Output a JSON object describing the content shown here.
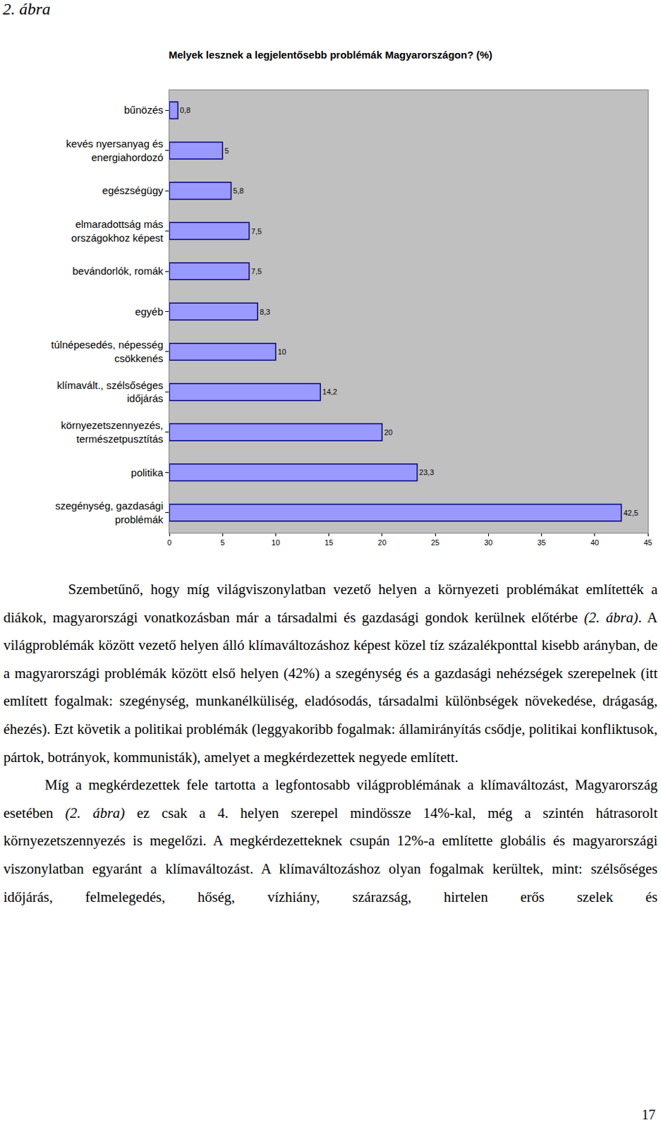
{
  "header": "2. ábra",
  "chart_data": {
    "type": "bar",
    "orientation": "horizontal",
    "title": "Melyek lesznek a legjelentősebb problémák Magyarországon? (%)",
    "categories": [
      "bűnözés",
      "kevés nyersanyag és\nenergiahordozó",
      "egészségügy",
      "elmaradottság más\nországokhoz képest",
      "bevándorlók, romák",
      "egyéb",
      "túlnépesedés, népesség\ncsökkenés",
      "klímavált., szélsőséges\nidőjárás",
      "környezetszennyezés,\ntermészetpusztítás",
      "politika",
      "szegénység, gazdasági\nproblémák"
    ],
    "values": [
      0.8,
      5,
      5.8,
      7.5,
      7.5,
      8.3,
      10,
      14.2,
      20,
      23.3,
      42.5
    ],
    "value_labels": [
      "0,8",
      "5",
      "5,8",
      "7,5",
      "7,5",
      "8,3",
      "10",
      "14,2",
      "20",
      "23,3",
      "42,5"
    ],
    "data_labels": true,
    "color": "#9999ff",
    "xlim": [
      0,
      45
    ],
    "xticks": [
      0,
      5,
      10,
      15,
      20,
      25,
      30,
      35,
      40,
      45
    ],
    "grid": false
  },
  "paragraphs": [
    [
      {
        "text": "Szembetűnő, hogy míg világviszonylatban vezető helyen a környezeti problémákat említették a diákok, magyarországi vonatkozásban már a társadalmi és gazdasági gondok kerülnek előtérbe ",
        "italic": false
      },
      {
        "text": "(2. ábra)",
        "italic": true
      },
      {
        "text": ". A világproblémák között vezető helyen álló klímaváltozáshoz képest közel tíz százalékponttal kisebb arányban, de a magyarországi problémák között első helyen (42%) a szegénység és a gazdasági nehézségek szerepelnek (itt említett fogalmak: szegénység, munkanélküliség, eladósodás, társadalmi különbségek növekedése, drágaság, éhezés). Ezt követik a politikai problémák (leggyakoribb fogalmak: államirányítás csődje, politikai konfliktusok, pártok, botrányok, kommunisták), amelyet a megkérdezettek negyede említett.",
        "italic": false
      }
    ],
    [
      {
        "text": "Míg a megkérdezettek fele tartotta a legfontosabb világproblémának a klímaváltozást, Magyarország esetében ",
        "italic": false
      },
      {
        "text": "(2. ábra)",
        "italic": true
      },
      {
        "text": " ez csak a 4. helyen szerepel mindössze 14%-kal, még a szintén hátrasorolt környezetszennyezés is megelőzi. A megkérdezetteknek csupán 12%-a említette globális és magyarországi viszonylatban egyaránt a klímaváltozást. A klímaváltozáshoz olyan fogalmak kerültek, mint: szélsőséges időjárás, felmelegedés, hőség, vízhiány, szárazság, hirtelen erős szelek és",
        "italic": false
      }
    ]
  ],
  "page_number": "17"
}
